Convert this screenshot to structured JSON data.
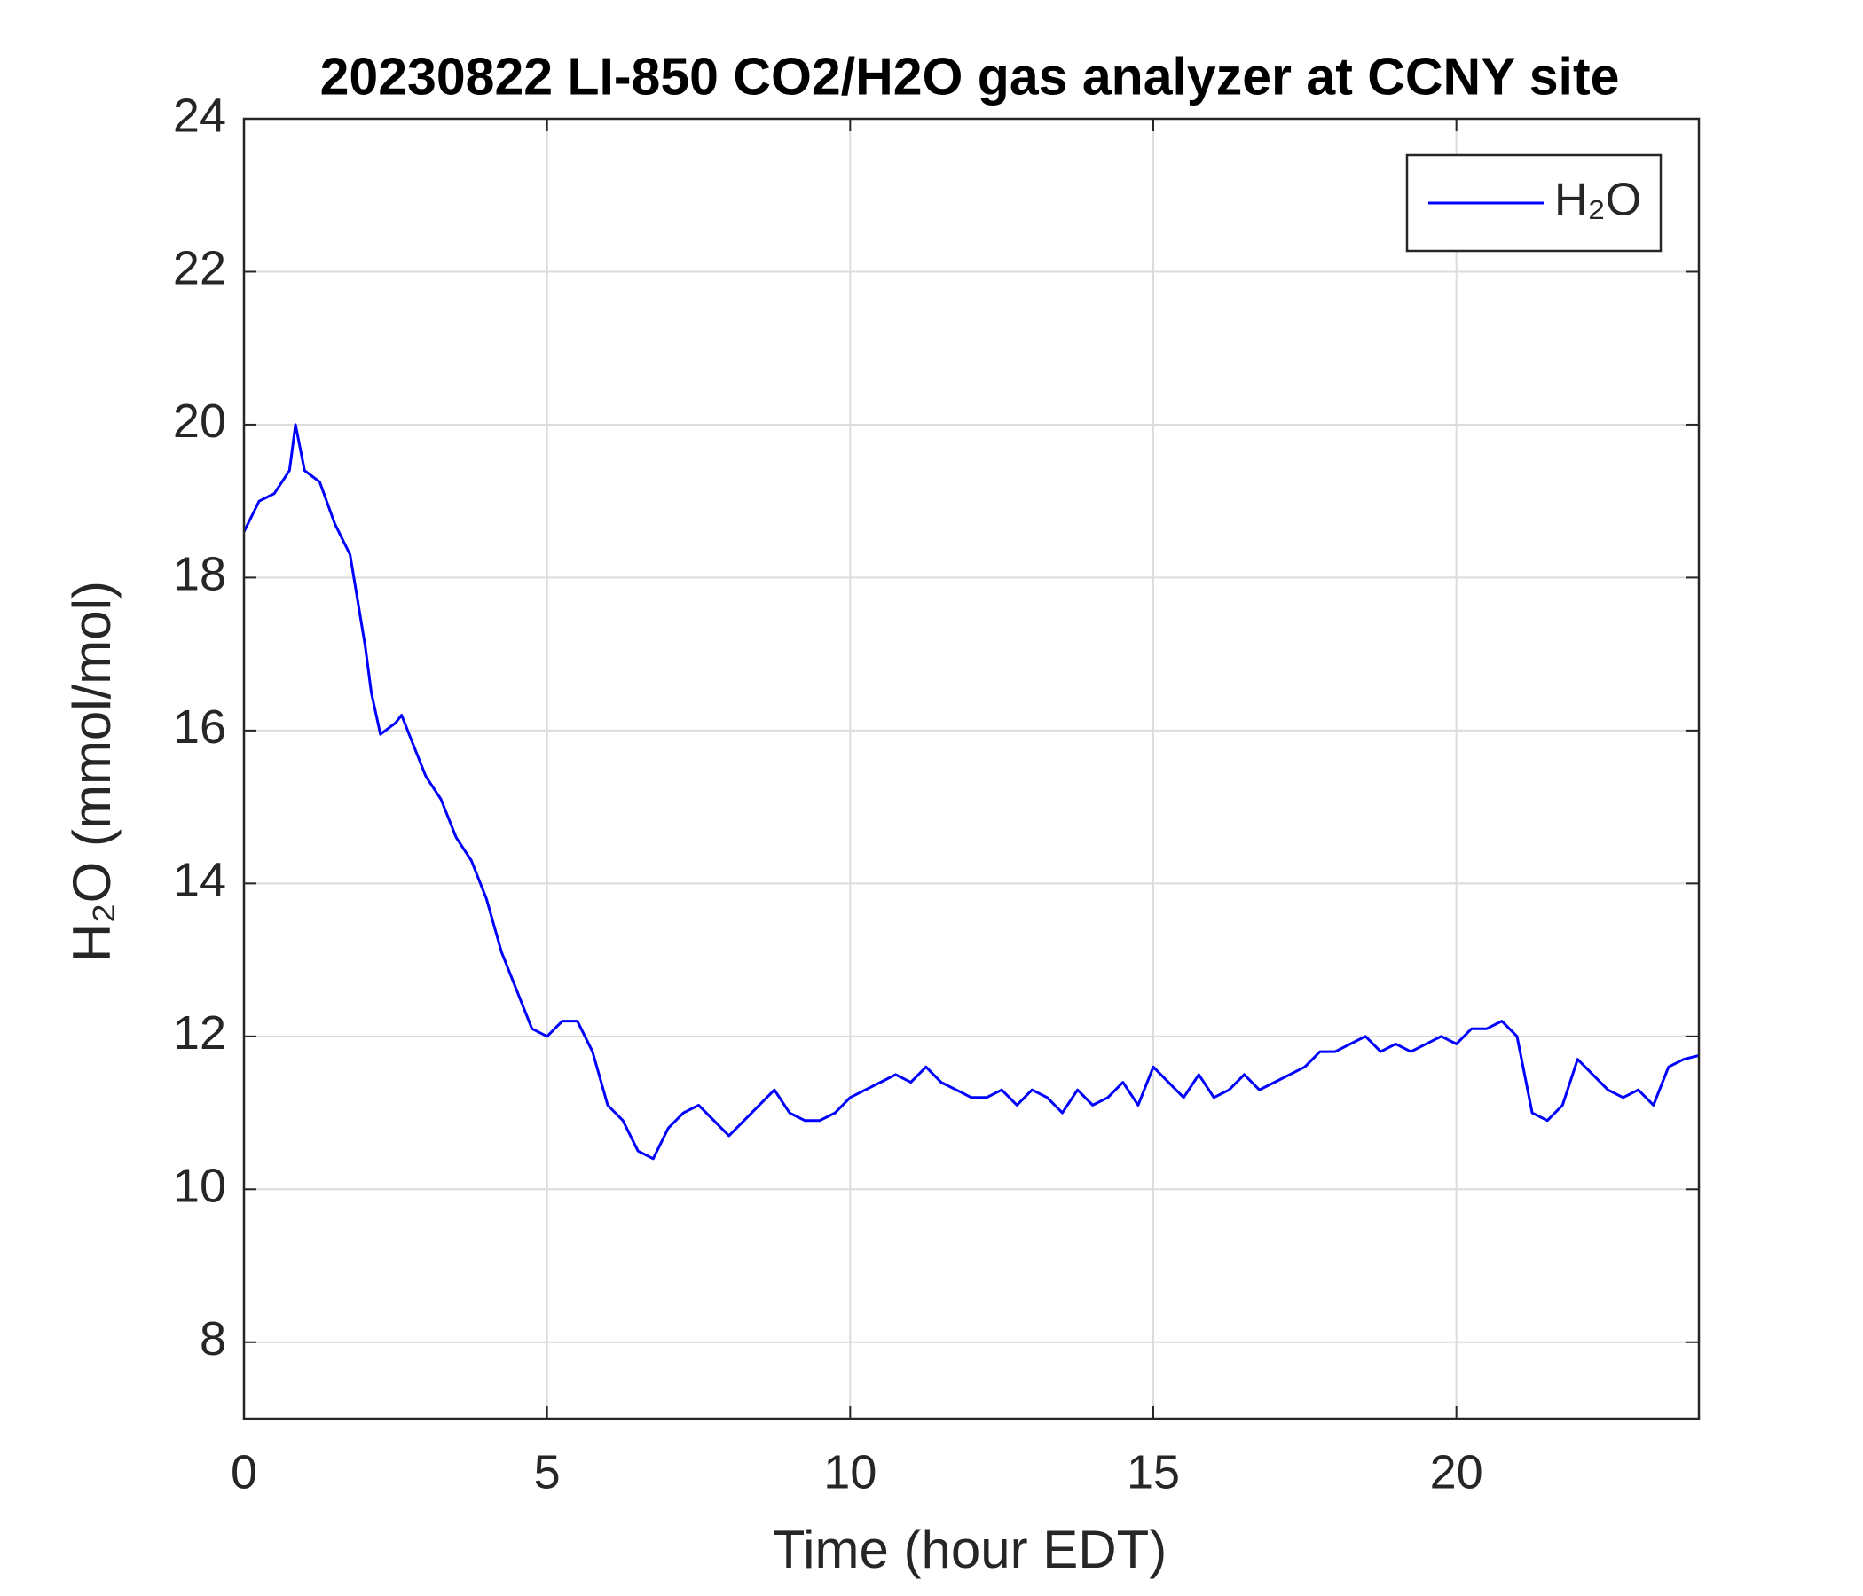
{
  "chart_data": {
    "type": "line",
    "title": "20230822 LI-850 CO2/H2O gas analyzer at CCNY site",
    "xlabel": "Time (hour EDT)",
    "ylabel": "H₂O (mmol/mol)",
    "x": [
      0,
      0.25,
      0.5,
      0.75,
      0.85,
      1,
      1.25,
      1.5,
      1.75,
      2,
      2.1,
      2.25,
      2.5,
      2.6,
      2.75,
      3,
      3.25,
      3.5,
      3.75,
      4,
      4.25,
      4.5,
      4.75,
      5,
      5.25,
      5.5,
      5.75,
      6,
      6.25,
      6.5,
      6.75,
      7,
      7.25,
      7.5,
      7.75,
      8,
      8.25,
      8.5,
      8.75,
      9,
      9.25,
      9.5,
      9.75,
      10,
      10.25,
      10.5,
      10.75,
      11,
      11.25,
      11.5,
      11.75,
      12,
      12.25,
      12.5,
      12.75,
      13,
      13.25,
      13.5,
      13.75,
      14,
      14.25,
      14.5,
      14.75,
      15,
      15.25,
      15.5,
      15.75,
      16,
      16.25,
      16.5,
      16.75,
      17,
      17.25,
      17.5,
      17.75,
      18,
      18.25,
      18.5,
      18.75,
      19,
      19.25,
      19.5,
      19.75,
      20,
      20.25,
      20.5,
      20.75,
      21,
      21.25,
      21.5,
      21.75,
      22,
      22.25,
      22.5,
      22.75,
      23,
      23.25,
      23.5,
      23.75,
      24
    ],
    "series": [
      {
        "name": "H₂O",
        "color": "#0000ff",
        "values": [
          18.6,
          19.0,
          19.1,
          19.4,
          20.0,
          19.4,
          19.25,
          18.7,
          18.3,
          17.1,
          16.5,
          15.95,
          16.1,
          16.2,
          15.9,
          15.4,
          15.1,
          14.6,
          14.3,
          13.8,
          13.1,
          12.6,
          12.1,
          12.0,
          12.2,
          12.2,
          11.8,
          11.1,
          10.9,
          10.5,
          10.4,
          10.8,
          11.0,
          11.1,
          10.9,
          10.7,
          10.9,
          11.1,
          11.3,
          11.0,
          10.9,
          10.9,
          11.0,
          11.2,
          11.3,
          11.4,
          11.5,
          11.4,
          11.6,
          11.4,
          11.3,
          11.2,
          11.2,
          11.3,
          11.1,
          11.3,
          11.2,
          11.0,
          11.3,
          11.1,
          11.2,
          11.4,
          11.1,
          11.6,
          11.4,
          11.2,
          11.5,
          11.2,
          11.3,
          11.5,
          11.3,
          11.4,
          11.5,
          11.6,
          11.8,
          11.8,
          11.9,
          12.0,
          11.8,
          11.9,
          11.8,
          11.9,
          12.0,
          11.9,
          12.1,
          12.1,
          12.2,
          12.0,
          11.0,
          10.9,
          11.1,
          11.7,
          11.5,
          11.3,
          11.2,
          11.3,
          11.1,
          11.6,
          11.7,
          11.75
        ]
      }
    ],
    "xlim": [
      0,
      24
    ],
    "xticks": [
      0,
      5,
      10,
      15,
      20
    ],
    "ylim": [
      7,
      24
    ],
    "yticks": [
      8,
      10,
      12,
      14,
      16,
      18,
      20,
      22,
      24
    ],
    "grid": true,
    "legend": "northeast"
  }
}
